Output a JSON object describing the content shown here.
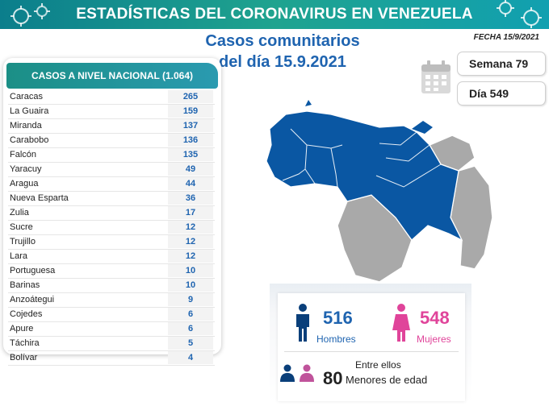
{
  "banner": {
    "title": "ESTADÍSTICAS DEL CORONAVIRUS EN VENEZUELA"
  },
  "headline": {
    "line1": "Casos comunitarios",
    "line2": "del día 15.9.2021"
  },
  "fecha": "FECHA 15/9/2021",
  "semana": "Semana 79",
  "dia": "Día 549",
  "table": {
    "header": "CASOS A NIVEL NACIONAL (1.064)",
    "rows": [
      {
        "state": "Caracas",
        "cases": "265"
      },
      {
        "state": "La Guaira",
        "cases": "159"
      },
      {
        "state": "Miranda",
        "cases": "137"
      },
      {
        "state": "Carabobo",
        "cases": "136"
      },
      {
        "state": "Falcón",
        "cases": "135"
      },
      {
        "state": "Yaracuy",
        "cases": "49"
      },
      {
        "state": "Aragua",
        "cases": "44"
      },
      {
        "state": "Nueva Esparta",
        "cases": "36"
      },
      {
        "state": "Zulia",
        "cases": "17"
      },
      {
        "state": "Sucre",
        "cases": "12"
      },
      {
        "state": "Trujillo",
        "cases": "12"
      },
      {
        "state": "Lara",
        "cases": "12"
      },
      {
        "state": "Portuguesa",
        "cases": "10"
      },
      {
        "state": "Barinas",
        "cases": "10"
      },
      {
        "state": "Anzoátegui",
        "cases": "9"
      },
      {
        "state": "Cojedes",
        "cases": "6"
      },
      {
        "state": "Apure",
        "cases": "6"
      },
      {
        "state": "Táchira",
        "cases": "5"
      },
      {
        "state": "Bolívar",
        "cases": "4"
      }
    ]
  },
  "stats": {
    "hombres_num": "516",
    "hombres_label": "Hombres",
    "mujeres_num": "548",
    "mujeres_label": "Mujeres",
    "entre": "Entre ellos",
    "menores_num": "80",
    "menores_label": "Menores de edad"
  },
  "colors": {
    "blue": "#1f64b0",
    "pink": "#e0449a",
    "teal": "#1b8f86",
    "map_blue": "#0a57a3",
    "map_gray": "#a9a9a9"
  },
  "icons": [
    "virus-icon",
    "calendar-icon",
    "map-venezuela",
    "man-icon",
    "woman-icon",
    "children-icon"
  ]
}
